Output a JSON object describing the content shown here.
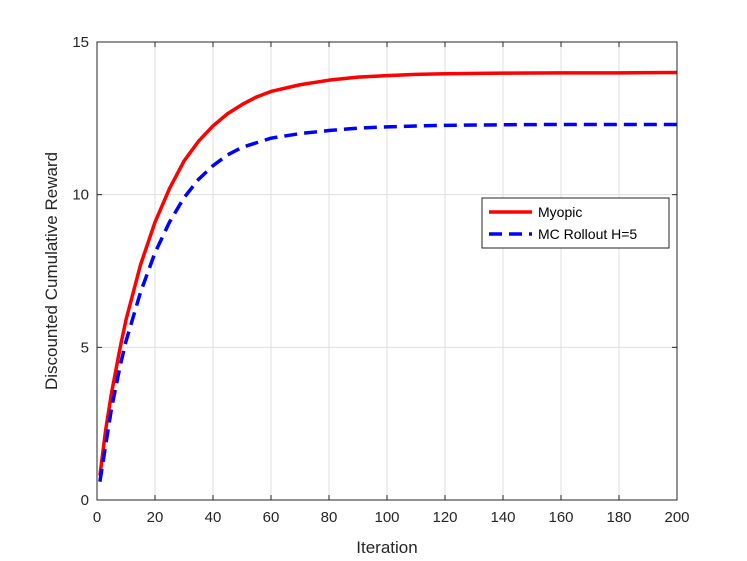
{
  "chart_data": {
    "type": "line",
    "title": "",
    "xlabel": "Iteration",
    "ylabel": "Discounted Cumulative Reward",
    "xlim": [
      0,
      200
    ],
    "ylim": [
      0,
      15
    ],
    "xticks": [
      0,
      20,
      40,
      60,
      80,
      100,
      120,
      140,
      160,
      180,
      200
    ],
    "yticks": [
      0,
      5,
      10,
      15
    ],
    "grid": true,
    "legend_position": "right",
    "series": [
      {
        "name": "Myopic",
        "color": "#ff0000",
        "style": "solid",
        "x": [
          1,
          3,
          5,
          8,
          10,
          15,
          20,
          25,
          30,
          35,
          40,
          45,
          50,
          55,
          60,
          70,
          80,
          90,
          100,
          110,
          120,
          140,
          160,
          180,
          200
        ],
        "y": [
          0.8,
          2.3,
          3.5,
          5.0,
          5.9,
          7.7,
          9.1,
          10.2,
          11.1,
          11.75,
          12.25,
          12.65,
          12.95,
          13.2,
          13.38,
          13.6,
          13.75,
          13.85,
          13.9,
          13.94,
          13.96,
          13.98,
          13.99,
          13.99,
          14.0
        ]
      },
      {
        "name": "MC Rollout H=5",
        "color": "#0000ff",
        "style": "dashed",
        "x": [
          1,
          3,
          5,
          8,
          10,
          15,
          20,
          25,
          30,
          35,
          40,
          45,
          50,
          55,
          60,
          70,
          80,
          90,
          100,
          110,
          120,
          140,
          160,
          180,
          200
        ],
        "y": [
          0.6,
          1.8,
          3.0,
          4.4,
          5.2,
          6.8,
          8.1,
          9.1,
          9.9,
          10.5,
          10.95,
          11.3,
          11.55,
          11.7,
          11.85,
          12.0,
          12.1,
          12.18,
          12.22,
          12.25,
          12.27,
          12.29,
          12.3,
          12.3,
          12.3
        ]
      }
    ]
  }
}
